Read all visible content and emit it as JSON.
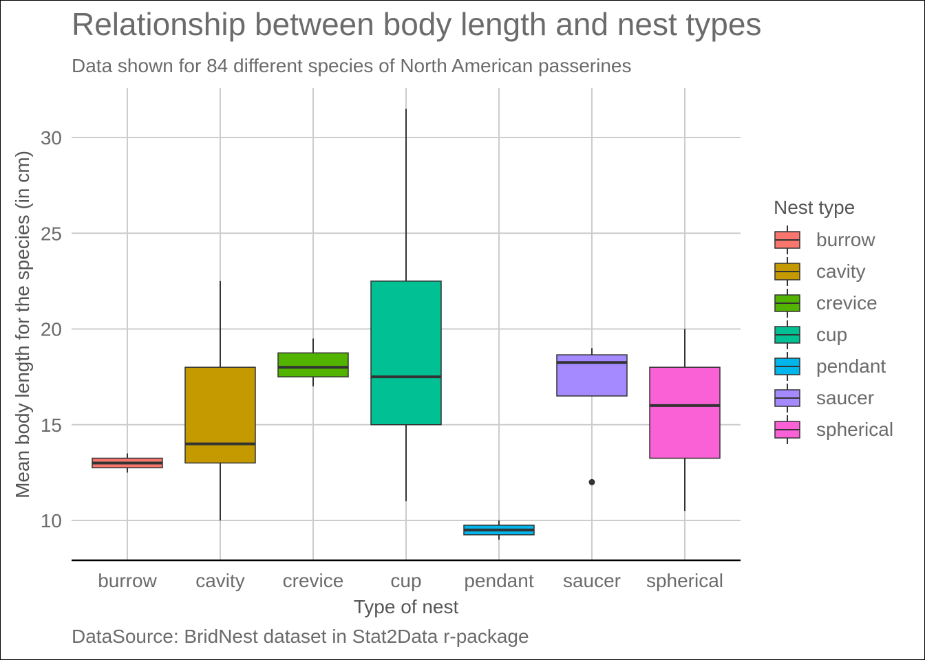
{
  "chart_data": {
    "type": "box",
    "title": "Relationship between body length and nest types",
    "subtitle": "Data shown for 84 different species of North American passerines",
    "caption": "DataSource: BridNest dataset in Stat2Data r-package",
    "xlabel": "Type of nest",
    "ylabel": "Mean body length for the species (in cm)",
    "ylim": [
      8,
      32.5
    ],
    "yticks": [
      10,
      15,
      20,
      25,
      30
    ],
    "grid": true,
    "legend": {
      "title": "Nest type",
      "placement": "right"
    },
    "categories": [
      "burrow",
      "cavity",
      "crevice",
      "cup",
      "pendant",
      "saucer",
      "spherical"
    ],
    "colors": [
      "#F8766D",
      "#C49A00",
      "#53B400",
      "#00C094",
      "#00B6EB",
      "#A58AFF",
      "#FB61D7"
    ],
    "boxes": [
      {
        "category": "burrow",
        "min": 12.5,
        "q1": 12.75,
        "median": 13.0,
        "q3": 13.25,
        "max": 13.5,
        "outliers": []
      },
      {
        "category": "cavity",
        "min": 10.0,
        "q1": 13.0,
        "median": 14.0,
        "q3": 18.0,
        "max": 22.5,
        "outliers": []
      },
      {
        "category": "crevice",
        "min": 17.0,
        "q1": 17.5,
        "median": 18.0,
        "q3": 18.75,
        "max": 19.5,
        "outliers": []
      },
      {
        "category": "cup",
        "min": 11.0,
        "q1": 15.0,
        "median": 17.5,
        "q3": 22.5,
        "max": 31.5,
        "outliers": []
      },
      {
        "category": "pendant",
        "min": 9.0,
        "q1": 9.25,
        "median": 9.5,
        "q3": 9.75,
        "max": 10.0,
        "outliers": []
      },
      {
        "category": "saucer",
        "min": 16.5,
        "q1": 16.5,
        "median": 18.25,
        "q3": 18.65,
        "max": 19.0,
        "outliers": [
          12.0
        ]
      },
      {
        "category": "spherical",
        "min": 10.5,
        "q1": 13.25,
        "median": 16.0,
        "q3": 18.0,
        "max": 20.0,
        "outliers": []
      }
    ]
  }
}
